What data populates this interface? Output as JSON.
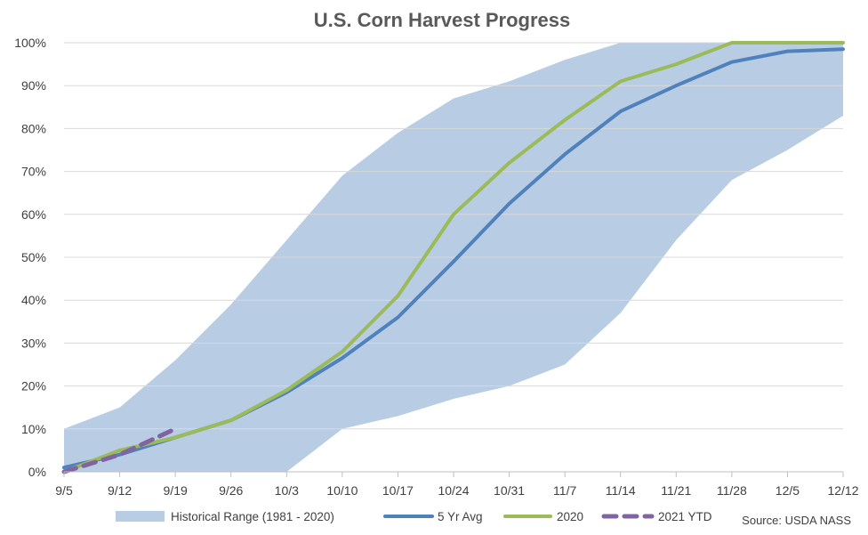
{
  "chart_data": {
    "type": "line",
    "title": "U.S. Corn Harvest Progress",
    "xlabel": "",
    "ylabel": "",
    "categories": [
      "9/5",
      "9/12",
      "9/19",
      "9/26",
      "10/3",
      "10/10",
      "10/17",
      "10/24",
      "10/31",
      "11/7",
      "11/14",
      "11/21",
      "11/28",
      "12/5",
      "12/12"
    ],
    "y_tick_labels": [
      "0%",
      "10%",
      "20%",
      "30%",
      "40%",
      "50%",
      "60%",
      "70%",
      "80%",
      "90%",
      "100%"
    ],
    "ylim": [
      0,
      100
    ],
    "grid": true,
    "legend_position": "bottom",
    "range": {
      "name": "Historical Range (1981 - 2020)",
      "color": "#b8cce4",
      "low": [
        0,
        0,
        0,
        0,
        0,
        10,
        13,
        17,
        20,
        25,
        37,
        54,
        68,
        75,
        83
      ],
      "high": [
        10,
        15,
        26,
        39,
        54,
        69,
        79,
        87,
        91,
        96,
        100,
        100,
        100,
        100,
        100
      ]
    },
    "series": [
      {
        "name": "5 Yr Avg",
        "color": "#4f81bd",
        "dashed": false,
        "values": [
          1,
          4,
          8,
          12,
          18.5,
          26.5,
          36,
          49,
          62.5,
          74,
          84,
          90,
          95.5,
          98,
          98.5
        ]
      },
      {
        "name": "2020",
        "color": "#9bbb59",
        "dashed": false,
        "values": [
          0,
          5,
          8,
          12,
          19,
          28,
          41,
          60,
          72,
          82,
          91,
          95,
          100,
          100,
          100
        ]
      },
      {
        "name": "2021 YTD",
        "color": "#8064a2",
        "dashed": true,
        "values": [
          0,
          4,
          10,
          null,
          null,
          null,
          null,
          null,
          null,
          null,
          null,
          null,
          null,
          null,
          null
        ]
      }
    ],
    "source": "Source: USDA NASS"
  }
}
